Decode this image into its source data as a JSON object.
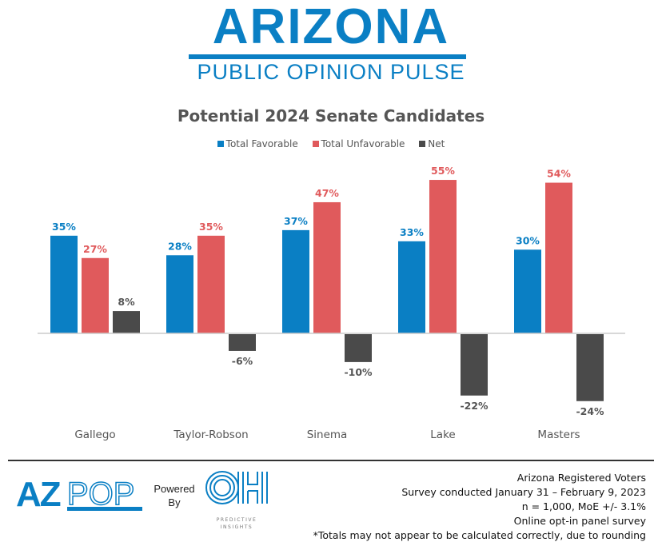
{
  "header": {
    "logo_title": "Arizona",
    "logo_subtitle": "PUBLIC OPINION PULSE"
  },
  "colors": {
    "favorable": "#0a7fc4",
    "unfavorable": "#e05a5c",
    "net": "#4a4a4a",
    "brand": "#0a7fc4"
  },
  "chart_data": {
    "type": "bar",
    "title": "Potential 2024 Senate Candidates",
    "xlabel": "",
    "ylabel": "",
    "categories": [
      "Gallego",
      "Taylor-Robson",
      "Sinema",
      "Lake",
      "Masters"
    ],
    "series": [
      {
        "name": "Total Favorable",
        "values": [
          35,
          28,
          37,
          33,
          30
        ],
        "labels": [
          "35%",
          "28%",
          "37%",
          "33%",
          "30%"
        ]
      },
      {
        "name": "Total Unfavorable",
        "values": [
          27,
          35,
          47,
          55,
          54
        ],
        "labels": [
          "27%",
          "35%",
          "47%",
          "55%",
          "54%"
        ]
      },
      {
        "name": "Net",
        "values": [
          8,
          -6,
          -10,
          -22,
          -24
        ],
        "labels": [
          "8%",
          "-6%",
          "-10%",
          "-22%",
          "-24%"
        ]
      }
    ],
    "ylim": [
      -24,
      55
    ],
    "grid": false,
    "legend_position": "top"
  },
  "footer": {
    "logo_az": "AZ",
    "logo_pop": "POP",
    "powered_line1": "Powered",
    "powered_line2": "By",
    "oh_logo_text": "PREDICTIVE INSIGHTS",
    "meta": [
      "Arizona Registered Voters",
      "Survey conducted January 31 – February 9, 2023",
      "n = 1,000, MoE +/- 3.1%",
      "Online opt-in panel survey",
      "*Totals may not appear to be calculated correctly, due to rounding"
    ]
  }
}
